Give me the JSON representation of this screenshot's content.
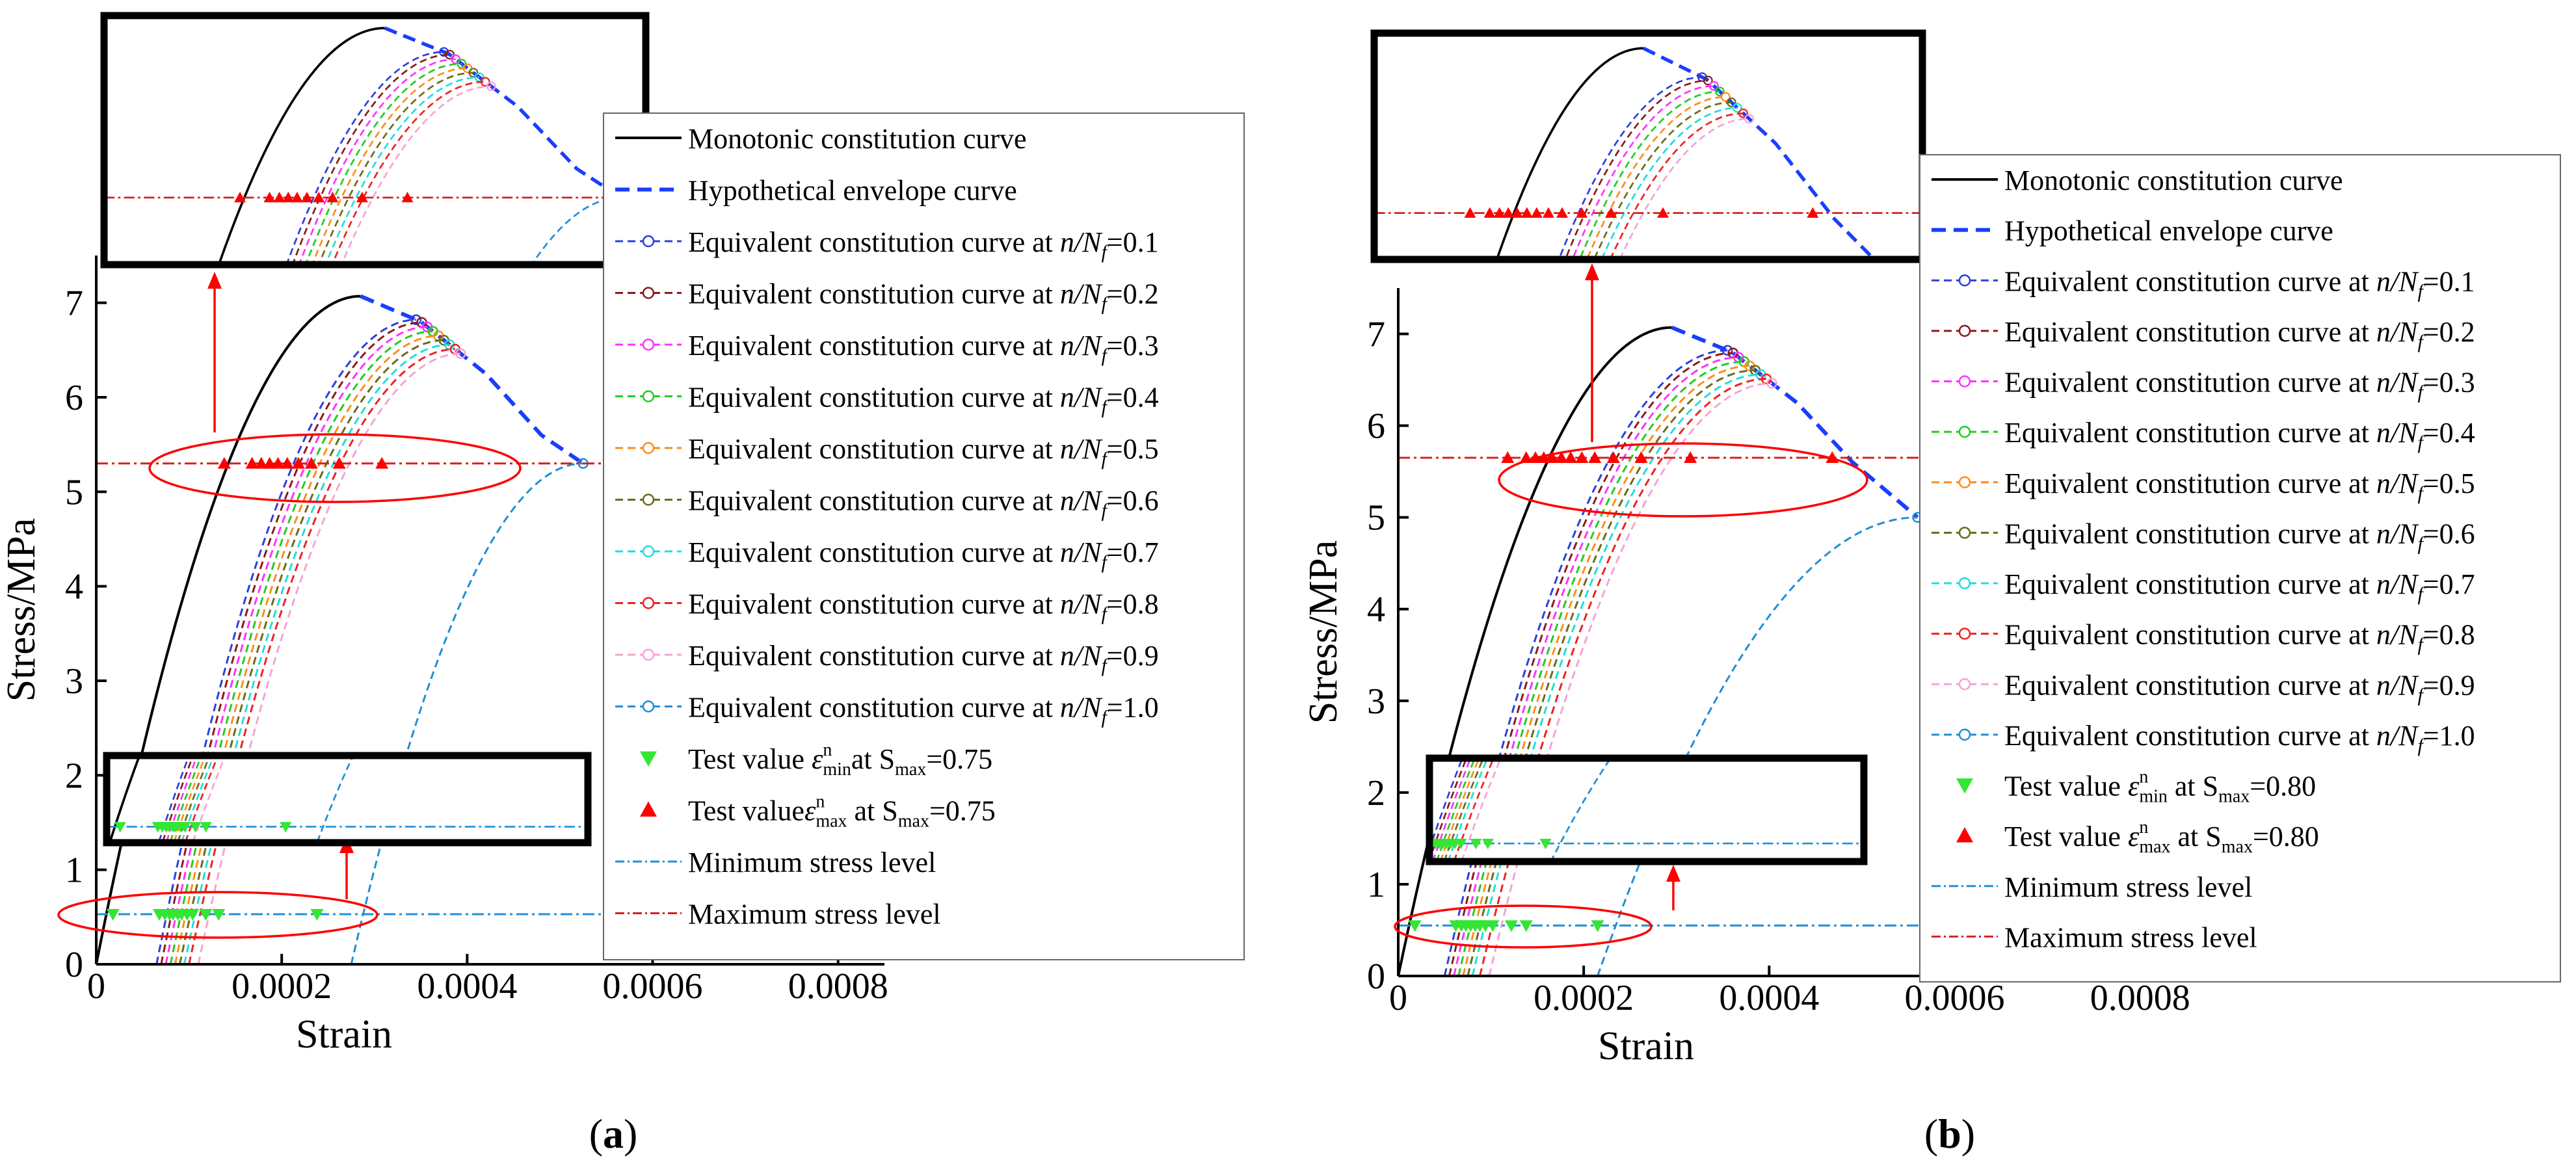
{
  "chart_data": [
    {
      "panel_label": "(a)",
      "type": "line",
      "xlabel": "Strain",
      "ylabel": "Stress/MPa",
      "xlim": [
        0,
        0.00085
      ],
      "ylim": [
        0,
        7.5
      ],
      "x_ticks": [
        0,
        0.0002,
        0.0004,
        0.0006,
        0.0008
      ],
      "x_tick_labels": [
        "0",
        "0.0002",
        "0.0004",
        "0.0006",
        "0.0008"
      ],
      "y_ticks": [
        0,
        1,
        2,
        3,
        4,
        5,
        6,
        7
      ],
      "y_tick_labels": [
        "0",
        "1",
        "2",
        "3",
        "4",
        "5",
        "6",
        "7"
      ],
      "monotonic": {
        "x": [
          0,
          3e-05,
          6e-05,
          0.0001,
          0.00014,
          0.00018,
          0.00022,
          0.00026,
          0.000285
        ],
        "y": [
          0,
          2.0,
          3.45,
          4.8,
          5.75,
          6.4,
          6.82,
          7.02,
          7.07
        ]
      },
      "envelope": {
        "x": [
          0.000285,
          0.00035,
          0.00042,
          0.00048,
          0.000525
        ],
        "y": [
          7.07,
          6.8,
          6.25,
          5.6,
          5.3
        ]
      },
      "equivalent_start_strains": [
        6.5e-05,
        7e-05,
        7.5e-05,
        8e-05,
        8.5e-05,
        9e-05,
        9.5e-05,
        0.0001,
        0.00011,
        0.000275
      ],
      "max_stress": 5.3,
      "min_stress": 0.53,
      "test_max_x": [
        0.000138,
        0.000168,
        0.000178,
        0.000187,
        0.000196,
        0.000206,
        0.000218,
        0.000232,
        0.000262,
        0.000308
      ],
      "test_min_x": [
        1.8e-05,
        6.8e-05,
        7.4e-05,
        7.9e-05,
        8.3e-05,
        8.8e-05,
        9.2e-05,
        9.8e-05,
        0.000104,
        0.000118,
        0.000132,
        0.000238
      ],
      "legend": [
        {
          "pre": "Monotonic constitution curve",
          "it": "",
          "sub": "",
          "post": ""
        },
        {
          "pre": "Hypothetical envelope curve",
          "it": "",
          "sub": "",
          "post": ""
        },
        {
          "pre": "Equivalent constitution curve at ",
          "it": "n/N",
          "sub": "f",
          "post": "=0.1"
        },
        {
          "pre": "Equivalent constitution curve at ",
          "it": "n/N",
          "sub": "f",
          "post": "=0.2"
        },
        {
          "pre": "Equivalent constitution curve at ",
          "it": "n/N",
          "sub": "f",
          "post": "=0.3"
        },
        {
          "pre": "Equivalent constitution curve at ",
          "it": "n/N",
          "sub": "f",
          "post": "=0.4"
        },
        {
          "pre": "Equivalent constitution curve at ",
          "it": "n/N",
          "sub": "f",
          "post": "=0.5"
        },
        {
          "pre": "Equivalent constitution curve at ",
          "it": "n/N",
          "sub": "f",
          "post": "=0.6"
        },
        {
          "pre": "Equivalent constitution curve at ",
          "it": "n/N",
          "sub": "f",
          "post": "=0.7"
        },
        {
          "pre": "Equivalent constitution curve at ",
          "it": "n/N",
          "sub": "f",
          "post": "=0.8"
        },
        {
          "pre": "Equivalent constitution curve at ",
          "it": "n/N",
          "sub": "f",
          "post": "=0.9"
        },
        {
          "pre": "Equivalent constitution curve at ",
          "it": "n/N",
          "sub": "f",
          "post": "=1.0"
        },
        {
          "pre": "Test value ",
          "it": "ε",
          "sub": "min",
          "sup": "n",
          "post": "at S",
          "sub2": "max",
          "post2": "=0.75"
        },
        {
          "pre": "Test value",
          "it": "ε",
          "sub": "max",
          "sup": "n",
          "post": " at S",
          "sub2": "max",
          "post2": "=0.75"
        },
        {
          "pre": "Minimum stress level",
          "it": "",
          "sub": "",
          "post": ""
        },
        {
          "pre": "Maximum stress level",
          "it": "",
          "sub": "",
          "post": ""
        }
      ]
    },
    {
      "panel_label": "(b)",
      "type": "line",
      "xlabel": "Strain",
      "ylabel": "Stress/MPa",
      "xlim": [
        0,
        0.00085
      ],
      "ylim": [
        0,
        7.5
      ],
      "x_ticks": [
        0,
        0.0002,
        0.0004,
        0.0006,
        0.0008
      ],
      "x_tick_labels": [
        "0",
        "0.0002",
        "0.0004",
        "0.0006",
        "0.0008"
      ],
      "y_ticks": [
        0,
        1,
        2,
        3,
        4,
        5,
        6,
        7
      ],
      "y_tick_labels": [
        "0",
        "1",
        "2",
        "3",
        "4",
        "5",
        "6",
        "7"
      ],
      "monotonic": {
        "x": [
          0,
          3e-05,
          6e-05,
          0.0001,
          0.00014,
          0.00018,
          0.00022,
          0.00026,
          0.000295
        ],
        "y": [
          0,
          2.0,
          3.45,
          4.8,
          5.75,
          6.4,
          6.82,
          7.02,
          7.07
        ]
      },
      "envelope": {
        "x": [
          0.000295,
          0.00036,
          0.00043,
          0.00049,
          0.00056
        ],
        "y": [
          7.07,
          6.8,
          6.25,
          5.6,
          5.0
        ]
      },
      "equivalent_start_strains": [
        5e-05,
        5.5e-05,
        6e-05,
        6.5e-05,
        7e-05,
        7.5e-05,
        8e-05,
        8.8e-05,
        9.8e-05,
        0.000215
      ],
      "max_stress": 5.65,
      "min_stress": 0.55,
      "test_max_x": [
        0.000118,
        0.000138,
        0.000148,
        0.000157,
        0.000166,
        0.000176,
        0.000186,
        0.000198,
        0.000212,
        0.000232,
        0.000262,
        0.000315,
        0.000468
      ],
      "test_min_x": [
        1.8e-05,
        6.2e-05,
        6.8e-05,
        7.3e-05,
        7.8e-05,
        8.3e-05,
        8.8e-05,
        9.4e-05,
        0.000102,
        0.000122,
        0.000138,
        0.000215
      ],
      "legend": [
        {
          "pre": "Monotonic constitution curve",
          "it": "",
          "sub": "",
          "post": ""
        },
        {
          "pre": "Hypothetical envelope curve",
          "it": "",
          "sub": "",
          "post": ""
        },
        {
          "pre": "Equivalent constitution curve at ",
          "it": "n/N",
          "sub": "f",
          "post": "=0.1"
        },
        {
          "pre": "Equivalent constitution curve at ",
          "it": "n/N",
          "sub": "f",
          "post": "=0.2"
        },
        {
          "pre": " Equivalent constitution curve at ",
          "it": "n/N",
          "sub": "f",
          "post": "=0.3"
        },
        {
          "pre": " Equivalent constitution curve at ",
          "it": "n/N",
          "sub": "f",
          "post": "=0.4"
        },
        {
          "pre": " Equivalent constitution curve at ",
          "it": "n/N",
          "sub": "f",
          "post": "=0.5"
        },
        {
          "pre": " Equivalent constitution curve at ",
          "it": "n/N",
          "sub": "f",
          "post": "=0.6"
        },
        {
          "pre": " Equivalent constitution curve at ",
          "it": "n/N",
          "sub": "f",
          "post": "=0.7"
        },
        {
          "pre": " Equivalent constitution curve at ",
          "it": "n/N",
          "sub": "f",
          "post": "=0.8"
        },
        {
          "pre": " Equivalent constitution curve at ",
          "it": "n/N",
          "sub": "f",
          "post": "=0.9"
        },
        {
          "pre": " Equivalent constitution curve at ",
          "it": "n/N",
          "sub": "f",
          "post": "=1.0"
        },
        {
          "pre": "Test value ",
          "it": "ε",
          "sub": "min",
          "sup": "n",
          "post": " at S",
          "sub2": "max",
          "post2": "=0.80"
        },
        {
          "pre": "Test value ",
          "it": "ε",
          "sub": "max",
          "sup": "n",
          "post": " at S",
          "sub2": "max",
          "post2": "=0.80"
        },
        {
          "pre": "Minimum stress level",
          "it": "",
          "sub": "",
          "post": ""
        },
        {
          "pre": "Maximum stress level",
          "it": "",
          "sub": "",
          "post": ""
        }
      ]
    }
  ],
  "styles": {
    "series_colors": [
      "#000000",
      "#1a3dff",
      "#2b3fdc",
      "#8b1a1a",
      "#ff33ff",
      "#22cc22",
      "#ff8c1a",
      "#6b6b1a",
      "#22dddd",
      "#ee2222",
      "#f5a3d6",
      "#1f8fd6"
    ],
    "test_min_color": "#33e633",
    "test_max_color": "#ff0000",
    "highlight_color": "#ff0000",
    "min_line_color": "#1f8fd6",
    "max_line_color": "#d62020"
  }
}
